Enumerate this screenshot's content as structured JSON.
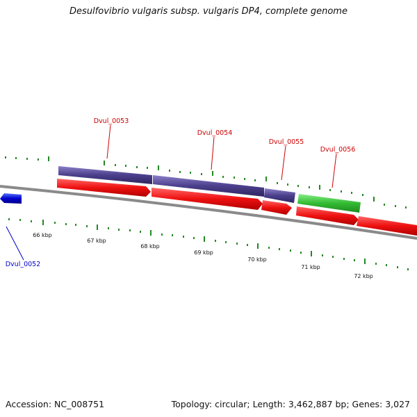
{
  "title": "Desulfovibrio vulgaris subsp. vulgaris DP4, complete genome",
  "footer": {
    "accession": "Accession: NC_008751",
    "summary": "Topology: circular; Length: 3,462,887 bp; Genes: 3,027"
  },
  "ruler": {
    "unit": "kbp",
    "labels": [
      "66 kbp",
      "67 kbp",
      "68 kbp",
      "69 kbp",
      "70 kbp",
      "71 kbp",
      "72 kbp"
    ]
  },
  "genes": [
    {
      "id": "Dvul_0052",
      "color": "#0000cc",
      "label_color": "#0000cc"
    },
    {
      "id": "Dvul_0053",
      "color": "#4b3f8c",
      "label_color": "#cc0000"
    },
    {
      "id": "Dvul_0054",
      "color": "#4b3f8c",
      "label_color": "#cc0000"
    },
    {
      "id": "Dvul_0055",
      "color": "#4b3f8c",
      "label_color": "#cc0000"
    },
    {
      "id": "Dvul_0056",
      "color": "#33bb33",
      "label_color": "#cc0000"
    }
  ],
  "colors": {
    "backbone": "#8a8a8a",
    "cds": "#ee1111",
    "gc_ticks": "#228822",
    "background": "#ffffff"
  }
}
